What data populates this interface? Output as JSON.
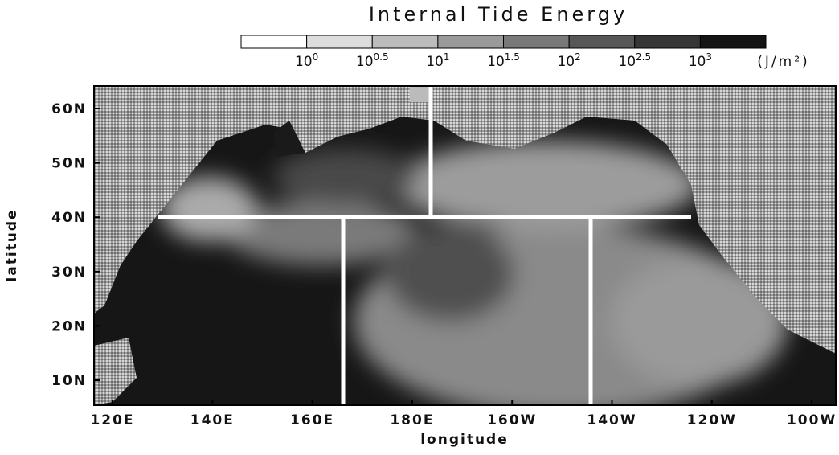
{
  "title": "Internal Tide Energy",
  "colorbar": {
    "labels": [
      {
        "base": "10",
        "exponent": "0"
      },
      {
        "base": "10",
        "exponent": "0.5"
      },
      {
        "base": "10",
        "exponent": "1"
      },
      {
        "base": "10",
        "exponent": "1.5"
      },
      {
        "base": "10",
        "exponent": "2"
      },
      {
        "base": "10",
        "exponent": "2.5"
      },
      {
        "base": "10",
        "exponent": "3"
      }
    ],
    "unit": "(J/m²)"
  },
  "x_axis": {
    "label": "longitude",
    "ticks": [
      "120E",
      "140E",
      "160E",
      "180E",
      "160W",
      "140W",
      "120W",
      "100W"
    ]
  },
  "y_axis": {
    "label": "latitude",
    "ticks": [
      "60N",
      "50N",
      "40N",
      "30N",
      "20N",
      "10N"
    ]
  }
}
